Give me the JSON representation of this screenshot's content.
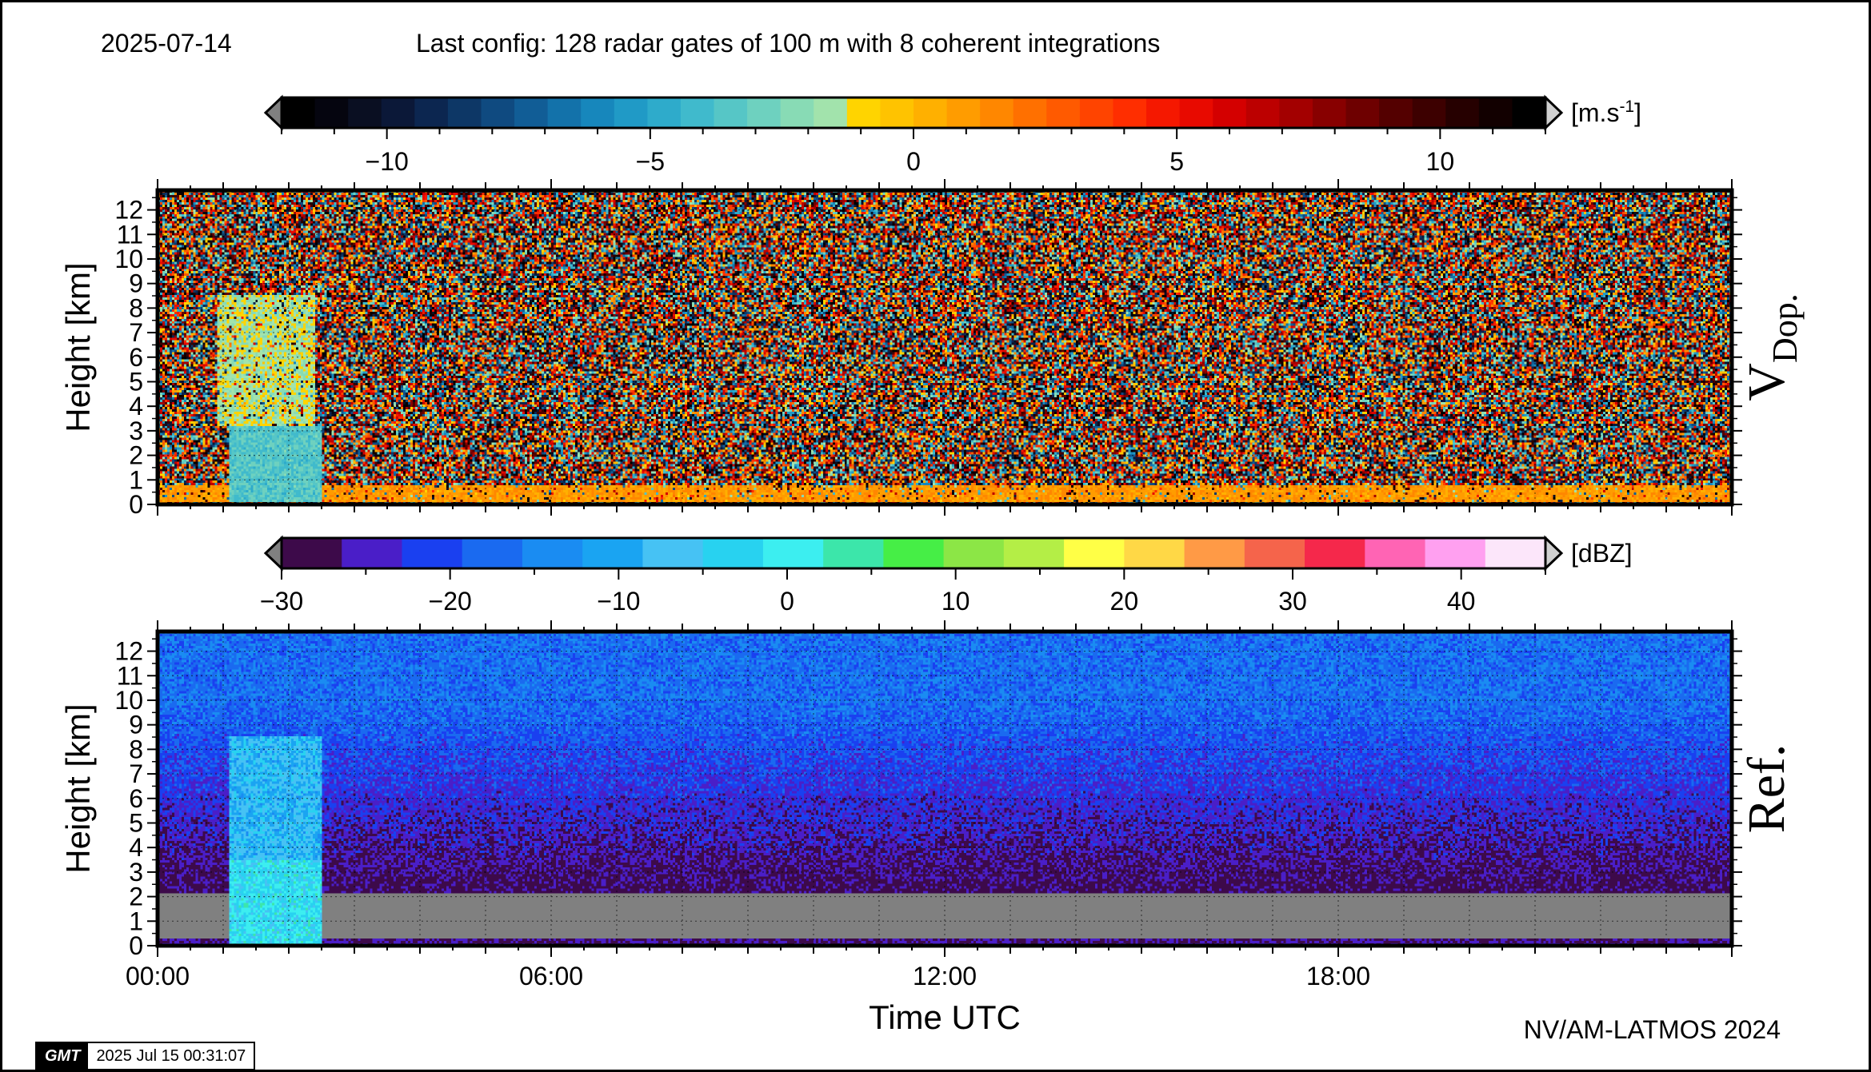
{
  "header": {
    "date": "2025-07-14",
    "config": "Last config: 128 radar gates of 100 m with 8 coherent integrations"
  },
  "footer": {
    "credit": "NV/AM-LATMOS 2024",
    "gmt_logo": "GMT",
    "gmt_timestamp": "2025 Jul 15 00:31:07"
  },
  "chart_data": [
    {
      "type": "heatmap",
      "title": "",
      "panel_label": "V",
      "panel_label_sub": "Dop.",
      "xlabel": "",
      "ylabel": "Height [km]",
      "xlim": [
        0,
        24
      ],
      "ylim": [
        0,
        12.8
      ],
      "x_tick_labels": [],
      "y_ticks": [
        0,
        1,
        2,
        3,
        4,
        5,
        6,
        7,
        8,
        9,
        10,
        11,
        12
      ],
      "grid": true,
      "colorbar": {
        "unit": "[m.s-1]",
        "unit_main": "[m.s",
        "unit_sup": "-1",
        "unit_close": "]",
        "min": -12,
        "max": 12,
        "ticks": [
          -10,
          -5,
          0,
          5,
          10
        ],
        "tick_labels": [
          "−10",
          "−5",
          "0",
          "5",
          "10"
        ],
        "colors": [
          "#000000",
          "#05050f",
          "#0a0f22",
          "#0b1838",
          "#0c2650",
          "#0d3766",
          "#0f4a80",
          "#115d96",
          "#1372aa",
          "#1787bc",
          "#209ac6",
          "#2eabcb",
          "#40bacc",
          "#56c6c6",
          "#6ed1bf",
          "#88dbb5",
          "#a2e3ac",
          "#ffd400",
          "#ffc300",
          "#ffb000",
          "#ff9c00",
          "#ff8700",
          "#ff7000",
          "#ff5a00",
          "#ff4400",
          "#ff2e00",
          "#f51800",
          "#e80a00",
          "#d40000",
          "#bc0000",
          "#a30000",
          "#880000",
          "#6e0000",
          "#540000",
          "#3d0000",
          "#260000",
          "#120000",
          "#000000"
        ]
      },
      "features": [
        {
          "description": "rain column",
          "x": [
            1.1,
            2.5
          ],
          "y": [
            0.1,
            3.2
          ],
          "value": -3.5
        },
        {
          "description": "cloud region",
          "x": [
            0.9,
            2.4
          ],
          "y": [
            3.2,
            8.5
          ],
          "value": -1.5
        },
        {
          "description": "boundary layer",
          "x": [
            0,
            24
          ],
          "y": [
            0.1,
            0.8
          ],
          "value": 1.0
        }
      ]
    },
    {
      "type": "heatmap",
      "title": "",
      "panel_label": "Ref.",
      "xlabel": "Time UTC",
      "ylabel": "Height [km]",
      "xlim": [
        0,
        24
      ],
      "ylim": [
        0,
        12.8
      ],
      "x_ticks": [
        0,
        6,
        12,
        18
      ],
      "x_tick_labels": [
        "00:00",
        "06:00",
        "12:00",
        "18:00"
      ],
      "y_ticks": [
        0,
        1,
        2,
        3,
        4,
        5,
        6,
        7,
        8,
        9,
        10,
        11,
        12
      ],
      "grid": true,
      "colorbar": {
        "unit": "[dBZ]",
        "min": -30,
        "max": 45,
        "ticks": [
          -30,
          -20,
          -10,
          0,
          10,
          20,
          30,
          40
        ],
        "tick_labels": [
          "−30",
          "−20",
          "−10",
          "0",
          "10",
          "20",
          "30",
          "40"
        ],
        "colors": [
          "#3d0a4a",
          "#4a1ec8",
          "#1a40f0",
          "#1a6af0",
          "#1a8cf2",
          "#1aa4f2",
          "#46c2f4",
          "#28d2f0",
          "#3ceef0",
          "#3ce6aa",
          "#46ee46",
          "#8ce646",
          "#b4ee46",
          "#ffff46",
          "#ffd846",
          "#ff9a46",
          "#f5644b",
          "#f5284b",
          "#ff64b4",
          "#ffa0f0",
          "#fce6fa"
        ]
      },
      "features": [
        {
          "description": "background noise aloft",
          "x": [
            0,
            24
          ],
          "y": [
            4,
            12.8
          ],
          "value": -20
        },
        {
          "description": "no data band",
          "x": [
            0,
            24
          ],
          "y": [
            0.3,
            2.1
          ],
          "value": null
        },
        {
          "description": "rain column",
          "x": [
            1.1,
            2.5
          ],
          "y": [
            0,
            8.5
          ],
          "value": -8
        }
      ]
    }
  ]
}
